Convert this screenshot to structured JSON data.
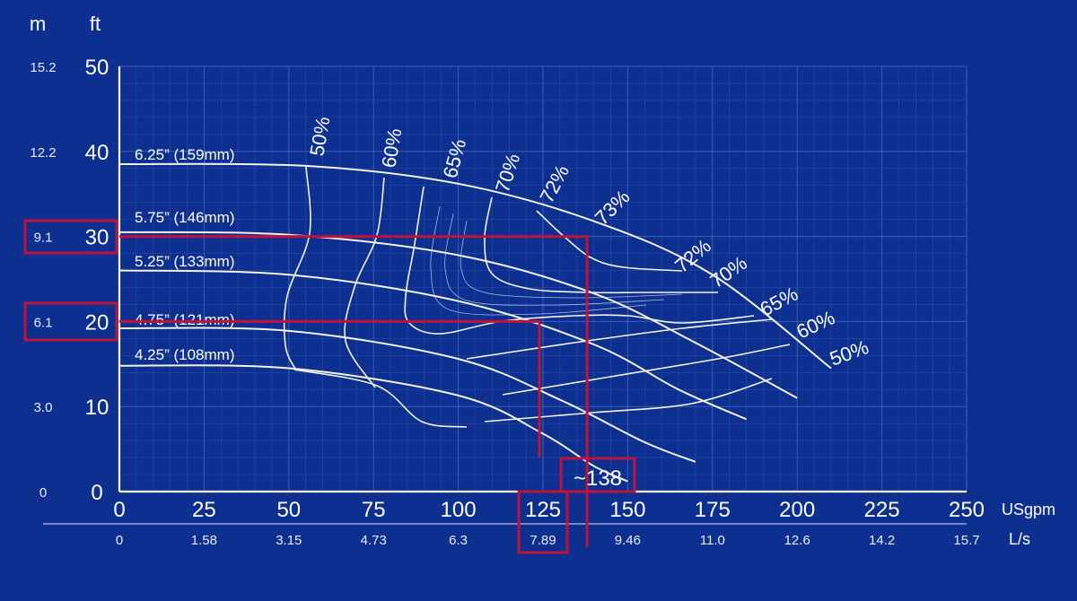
{
  "chart_data": {
    "type": "line",
    "title": "",
    "colors": {
      "background": "#0d2f8f",
      "grid": "#5a86e0",
      "curves": "#f3f3ea",
      "highlight": "#c0123a"
    },
    "x_axis": {
      "unit": "USgpm",
      "range": [
        0,
        250
      ],
      "ticks": [
        "0",
        "25",
        "50",
        "75",
        "100",
        "125",
        "150",
        "175",
        "200",
        "225",
        "250"
      ],
      "secondary_unit": "L/s",
      "secondary_ticks": [
        "0",
        "1.58",
        "3.15",
        "4.73",
        "6.3",
        "7.89",
        "9.46",
        "11.0",
        "12.6",
        "14.2",
        "15.7"
      ]
    },
    "y_axis": {
      "unit": "ft",
      "range": [
        0,
        50
      ],
      "ticks": [
        "0",
        "10",
        "20",
        "30",
        "40",
        "50"
      ],
      "secondary_unit": "m",
      "secondary_ticks": [
        "0",
        "3.0",
        "6.1",
        "9.1",
        "12.2",
        "15.2"
      ]
    },
    "grid": true,
    "series": [
      {
        "name": "6.25” (159mm)",
        "x": [
          0,
          55,
          100,
          140,
          175,
          210
        ],
        "y": [
          38.5,
          38.3,
          36.2,
          31.8,
          25.5,
          14.5
        ]
      },
      {
        "name": "5.75” (146mm)",
        "x": [
          0,
          50,
          100,
          140,
          170,
          200
        ],
        "y": [
          30.5,
          30.2,
          27.8,
          23.3,
          17.5,
          11.0
        ]
      },
      {
        "name": "5.25” (133mm)",
        "x": [
          0,
          50,
          100,
          140,
          165,
          185
        ],
        "y": [
          26.0,
          25.5,
          22.4,
          17.3,
          12.0,
          8.5
        ]
      },
      {
        "name": "4.75” (121mm)",
        "x": [
          0,
          50,
          100,
          130,
          155,
          170
        ],
        "y": [
          19.2,
          18.9,
          15.6,
          10.8,
          5.8,
          3.5
        ]
      },
      {
        "name": "4.25” (108mm)",
        "x": [
          0,
          50,
          100,
          125,
          140,
          150
        ],
        "y": [
          14.8,
          14.5,
          11.3,
          6.8,
          3.0,
          1.2
        ]
      }
    ],
    "efficiency_labels": {
      "left": [
        "50%",
        "60%",
        "65%",
        "70%",
        "72%"
      ],
      "top": "73%",
      "right": [
        "72%",
        "70%",
        "65%",
        "60%",
        "50%"
      ]
    },
    "annotation": {
      "text": "~138",
      "operating_point_1": {
        "flow_usgpm": 138,
        "head_ft": 30
      },
      "operating_point_2": {
        "flow_usgpm": 125,
        "head_ft": 20
      },
      "highlighted_ticks": [
        "9.1",
        "30",
        "6.1",
        "20",
        "125",
        "7.89"
      ]
    }
  }
}
